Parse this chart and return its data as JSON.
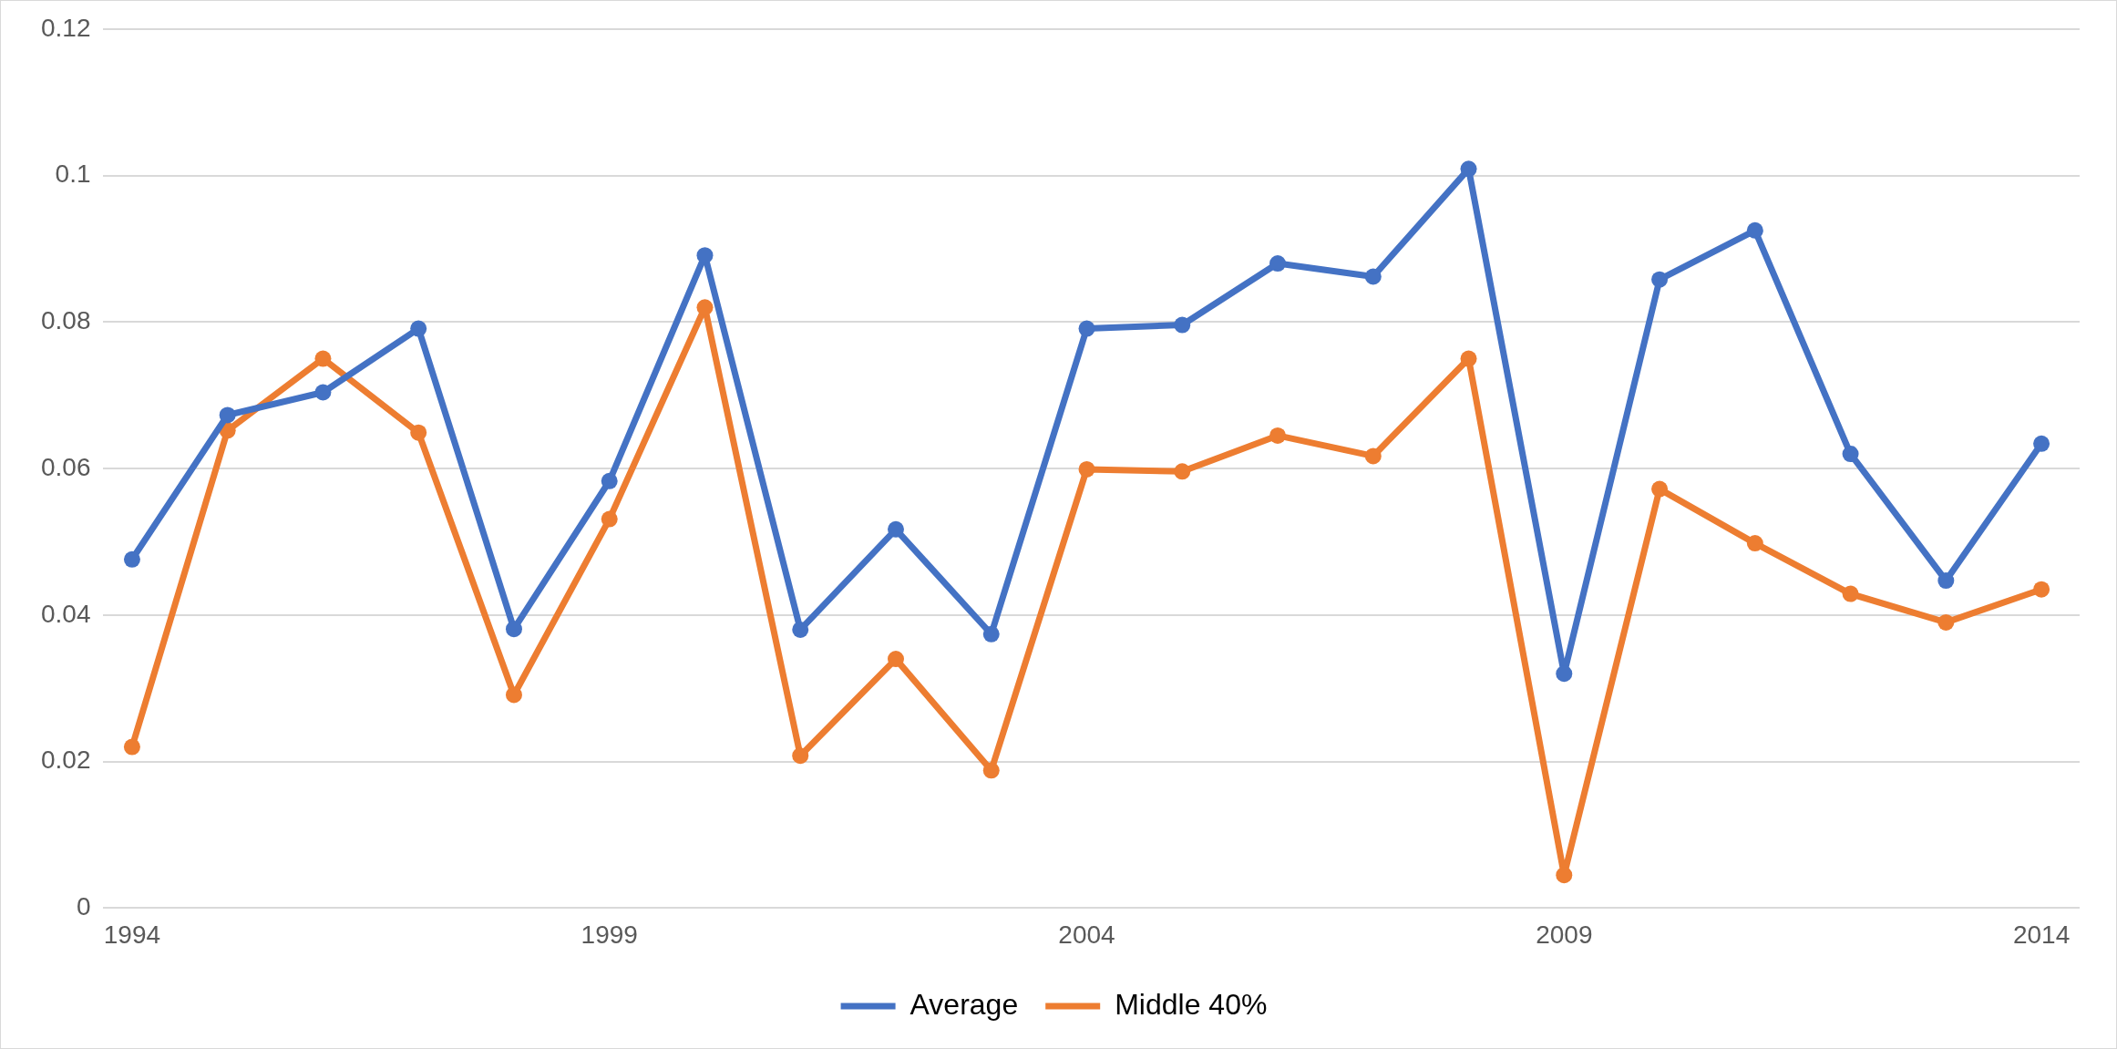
{
  "chart_data": {
    "type": "line",
    "x": [
      1994,
      1995,
      1996,
      1997,
      1998,
      1999,
      2000,
      2001,
      2002,
      2003,
      2004,
      2005,
      2006,
      2007,
      2008,
      2009,
      2010,
      2011,
      2012,
      2013,
      2014
    ],
    "series": [
      {
        "name": "Average",
        "color": "#4472c4",
        "values": [
          0.0476,
          0.0673,
          0.0704,
          0.0791,
          0.0381,
          0.0583,
          0.0891,
          0.038,
          0.0517,
          0.0374,
          0.0791,
          0.0796,
          0.088,
          0.0862,
          0.1009,
          0.032,
          0.0858,
          0.0925,
          0.062,
          0.0447,
          0.0634
        ]
      },
      {
        "name": "Middle 40%",
        "color": "#ed7d31",
        "values": [
          0.022,
          0.0652,
          0.075,
          0.0649,
          0.0291,
          0.0531,
          0.082,
          0.0208,
          0.034,
          0.0188,
          0.0599,
          0.0596,
          0.0645,
          0.0617,
          0.075,
          0.0045,
          0.0572,
          0.0498,
          0.0429,
          0.039,
          0.0435
        ]
      }
    ],
    "xlim": [
      1993.7,
      2014.4
    ],
    "xticks": [
      1994,
      1999,
      2004,
      2009,
      2014
    ],
    "ylim": [
      0,
      0.12
    ],
    "yticks": [
      {
        "value": 0,
        "label": "0"
      },
      {
        "value": 0.02,
        "label": "0.02"
      },
      {
        "value": 0.04,
        "label": "0.04"
      },
      {
        "value": 0.06,
        "label": "0.06"
      },
      {
        "value": 0.08,
        "label": "0.08"
      },
      {
        "value": 0.1,
        "label": "0.1"
      },
      {
        "value": 0.12,
        "label": "0.12"
      }
    ],
    "grid": "y",
    "legend": "bottom",
    "marker": "circle",
    "line_style": "solid"
  }
}
